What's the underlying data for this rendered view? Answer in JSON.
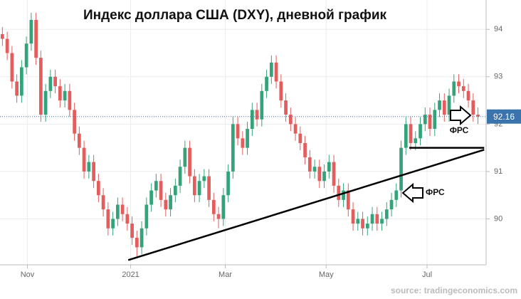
{
  "chart_data": {
    "type": "candlestick",
    "title": "Индекс доллара США (DXY), дневной график",
    "source": "source: tradingeconomics.com",
    "up_color": "#34a37a",
    "down_color": "#e35d5d",
    "grid": true,
    "xlim": [
      -0.5,
      100.7
    ],
    "ylim": [
      89.03,
      94.62
    ],
    "xticks": [
      {
        "value": 5.2,
        "label": "Nov"
      },
      {
        "value": 26.7,
        "label": "2021"
      },
      {
        "value": 46.4,
        "label": "Mar"
      },
      {
        "value": 67.4,
        "label": "May"
      },
      {
        "value": 88.4,
        "label": "Jul"
      }
    ],
    "yticks": [
      90,
      91,
      92,
      93,
      94
    ],
    "last_price": 92.16,
    "annotations": [
      "ФРС",
      "ФРС"
    ],
    "trendlines": [
      {
        "x": [
          26.2,
          100.3
        ],
        "y": [
          89.13,
          91.46
        ]
      },
      {
        "x": [
          84.7,
          100.3
        ],
        "y": [
          91.5,
          91.5
        ]
      }
    ],
    "open": [
      93.9,
      93.8,
      93.5,
      92.9,
      92.6,
      93.2,
      93.7,
      94.2,
      93.4,
      92.2,
      92.7,
      93.0,
      92.8,
      92.5,
      92.7,
      92.3,
      91.8,
      91.5,
      91.0,
      91.2,
      90.8,
      90.5,
      90.2,
      89.8,
      90.0,
      90.3,
      90.1,
      89.9,
      89.6,
      89.4,
      89.8,
      90.3,
      90.6,
      90.8,
      90.4,
      90.2,
      90.5,
      90.7,
      91.1,
      91.5,
      90.9,
      90.5,
      90.8,
      90.9,
      90.4,
      90.1,
      90.0,
      90.5,
      91.0,
      92.0,
      91.7,
      91.5,
      91.9,
      92.3,
      92.1,
      92.7,
      93.0,
      93.3,
      92.9,
      92.5,
      92.2,
      92.0,
      91.8,
      91.6,
      91.3,
      91.0,
      91.1,
      90.8,
      91.0,
      91.2,
      90.7,
      90.4,
      90.6,
      90.2,
      89.9,
      90.0,
      89.8,
      89.9,
      90.1,
      89.9,
      90.0,
      90.2,
      90.4,
      90.6,
      91.5,
      92.0,
      91.6,
      91.7,
      92.0,
      92.2,
      91.9,
      92.3,
      92.5,
      92.2,
      92.6,
      92.9,
      92.8,
      92.7,
      92.5,
      92.2
    ],
    "high": [
      94.05,
      93.95,
      93.65,
      93.05,
      93.35,
      93.85,
      94.35,
      94.35,
      93.55,
      92.85,
      93.15,
      93.15,
      92.95,
      92.85,
      92.85,
      92.45,
      91.95,
      91.65,
      91.35,
      91.35,
      90.95,
      90.65,
      90.35,
      90.15,
      90.45,
      90.45,
      90.25,
      90.05,
      89.75,
      89.95,
      90.45,
      90.75,
      90.95,
      90.95,
      90.55,
      90.65,
      90.85,
      91.25,
      91.65,
      91.65,
      91.05,
      90.95,
      91.05,
      91.05,
      90.55,
      90.25,
      90.65,
      91.15,
      92.15,
      92.15,
      91.85,
      92.05,
      92.45,
      92.45,
      92.85,
      93.15,
      93.45,
      93.45,
      93.05,
      92.65,
      92.35,
      92.15,
      91.95,
      91.75,
      91.45,
      91.25,
      91.25,
      91.15,
      91.35,
      91.35,
      90.85,
      90.75,
      90.75,
      90.35,
      90.15,
      90.15,
      90.05,
      90.25,
      90.25,
      90.15,
      90.35,
      90.55,
      90.75,
      91.65,
      92.15,
      92.15,
      91.85,
      92.15,
      92.35,
      92.35,
      92.45,
      92.65,
      92.65,
      92.75,
      93.05,
      93.05,
      92.95,
      92.85,
      92.65,
      92.35
    ],
    "low": [
      93.65,
      93.35,
      92.75,
      92.45,
      92.45,
      93.05,
      93.55,
      93.25,
      92.05,
      92.05,
      92.55,
      92.65,
      92.35,
      92.35,
      92.15,
      91.65,
      91.35,
      90.85,
      90.85,
      90.65,
      90.35,
      90.05,
      89.65,
      89.65,
      89.85,
      89.95,
      89.75,
      89.45,
      89.2,
      89.25,
      89.65,
      90.15,
      90.45,
      90.25,
      90.05,
      90.05,
      90.35,
      90.55,
      90.95,
      90.75,
      90.35,
      90.35,
      90.65,
      90.25,
      89.95,
      89.8,
      89.85,
      90.35,
      90.85,
      91.55,
      91.35,
      91.35,
      91.75,
      91.95,
      91.95,
      92.55,
      92.85,
      92.75,
      92.35,
      92.05,
      91.85,
      91.65,
      91.45,
      91.15,
      90.85,
      90.85,
      90.65,
      90.65,
      90.85,
      90.55,
      90.25,
      90.25,
      90.05,
      89.75,
      89.75,
      89.65,
      89.65,
      89.75,
      89.75,
      89.75,
      89.85,
      90.05,
      90.25,
      90.45,
      91.35,
      91.45,
      91.45,
      91.55,
      91.85,
      91.75,
      91.75,
      92.15,
      92.05,
      92.05,
      92.45,
      92.65,
      92.55,
      92.35,
      92.05,
      92.0
    ],
    "close": [
      93.8,
      93.5,
      92.9,
      92.6,
      93.2,
      93.7,
      94.2,
      93.4,
      92.2,
      92.7,
      93.0,
      92.8,
      92.5,
      92.7,
      92.3,
      91.8,
      91.5,
      91.0,
      91.2,
      90.8,
      90.5,
      90.2,
      89.8,
      90.0,
      90.3,
      90.1,
      89.9,
      89.6,
      89.4,
      89.8,
      90.3,
      90.6,
      90.8,
      90.4,
      90.2,
      90.5,
      90.7,
      91.1,
      91.5,
      90.9,
      90.5,
      90.8,
      90.9,
      90.4,
      90.1,
      90.0,
      90.5,
      91.0,
      92.0,
      91.7,
      91.5,
      91.9,
      92.3,
      92.1,
      92.7,
      93.0,
      93.3,
      92.9,
      92.5,
      92.2,
      92.0,
      91.8,
      91.6,
      91.3,
      91.0,
      91.1,
      90.8,
      91.0,
      91.2,
      90.7,
      90.4,
      90.6,
      90.2,
      89.9,
      90.0,
      89.8,
      89.9,
      90.1,
      89.9,
      90.0,
      90.2,
      90.4,
      90.6,
      91.5,
      92.0,
      91.6,
      91.7,
      92.0,
      92.2,
      91.9,
      92.3,
      92.5,
      92.2,
      92.6,
      92.9,
      92.8,
      92.7,
      92.5,
      92.2,
      92.16
    ]
  }
}
